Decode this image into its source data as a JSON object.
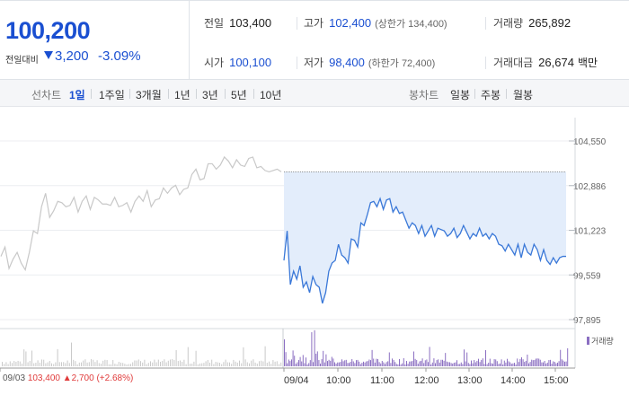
{
  "quote": {
    "current_price": "100,200",
    "change_label": "전일대비",
    "change_amount": "3,200",
    "change_rate": "-3.09%",
    "prev_close_label": "전일",
    "prev_close": "103,400",
    "high_label": "고가",
    "high": "102,400",
    "upper_limit": "(상한가 134,400)",
    "volume_label": "거래량",
    "volume": "265,892",
    "open_label": "시가",
    "open": "100,100",
    "low_label": "저가",
    "low": "98,400",
    "lower_limit": "(하한가 72,400)",
    "amount_label": "거래대금",
    "amount": "26,674",
    "amount_unit": "백만",
    "accent_color": "#1a4fd1"
  },
  "toolbar": {
    "line_chart_label": "선차트",
    "periods": [
      "1일",
      "1주일",
      "3개월",
      "1년",
      "3년",
      "5년",
      "10년"
    ],
    "active_period": "1일",
    "candle_chart_label": "봉차트",
    "candle_periods": [
      "일봉",
      "주봉",
      "월봉"
    ]
  },
  "chart_data": {
    "type": "line",
    "y_ticks": [
      "104,550",
      "102,886",
      "101,223",
      "99,559",
      "97,895"
    ],
    "ylim": [
      97895,
      104550
    ],
    "x_ticks": [
      "09/03",
      "09/04",
      "10:00",
      "11:00",
      "12:00",
      "13:00",
      "14:00",
      "15:00"
    ],
    "prev_close_reference": 103400,
    "series": [
      {
        "values_prev_day": [
          100250,
          100600,
          99800,
          100150,
          100400,
          100000,
          99750,
          100400,
          101200,
          101100,
          102100,
          102600,
          101700,
          101950,
          102300,
          102250,
          102100,
          102150,
          102450,
          101900,
          102300,
          102500,
          102000,
          102450,
          102350,
          102200,
          102200,
          102150,
          102450,
          102100,
          102150,
          102250,
          101900,
          102300,
          102500,
          102300,
          102700,
          102100,
          102350,
          102400,
          102800,
          102600,
          102800,
          102900,
          102550,
          102750,
          102800,
          103300,
          103500,
          103100,
          103150,
          103700,
          103700,
          103500,
          103650,
          103950,
          103800,
          103550,
          103850,
          103650,
          103600,
          103900,
          103950,
          103550,
          103600,
          103450,
          103400,
          103450,
          103500,
          103400
        ],
        "values_today": [
          100100,
          101200,
          99200,
          99700,
          99400,
          99900,
          99100,
          99300,
          98900,
          99500,
          99200,
          99100,
          98500,
          98900,
          99700,
          100000,
          100100,
          100700,
          100300,
          100200,
          100000,
          100900,
          100850,
          100600,
          101500,
          101400,
          101800,
          102250,
          102300,
          102100,
          102400,
          102000,
          102350,
          102400,
          101900,
          102100,
          101850,
          101900,
          101600,
          101300,
          101500,
          101400,
          101100,
          101400,
          101000,
          101200,
          101400,
          101000,
          101300,
          101250,
          101200,
          101000,
          101100,
          101300,
          100950,
          101100,
          101400,
          101150,
          100900,
          101100,
          101000,
          101300,
          101000,
          101100,
          100900,
          101100,
          101000,
          100700,
          100650,
          100450,
          100700,
          100500,
          100300,
          100700,
          100200,
          100700,
          100400,
          100300,
          100700,
          100500,
          100100,
          100500,
          100100,
          99950,
          100200,
          100000,
          100200,
          100250,
          100250
        ]
      }
    ],
    "volume_legend": "거래량",
    "prev_day_note": {
      "date": "09/03",
      "close": "103,400",
      "change": "2,700",
      "rate": "(+2.68%)"
    },
    "line_color": "#3a78d8",
    "prev_line_color": "#c8c8c8",
    "fill_color": "#e3edfb",
    "volume_color": "#8b6fc2"
  }
}
